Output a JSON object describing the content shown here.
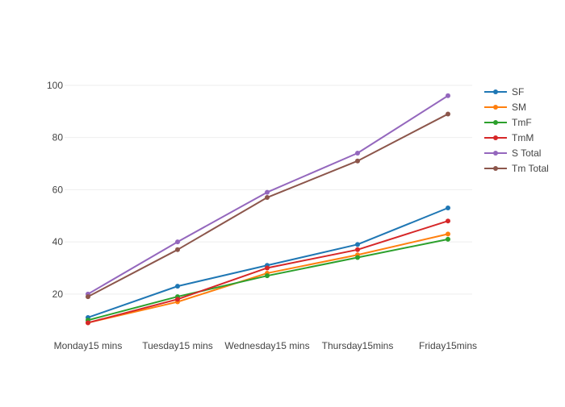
{
  "chart_data": {
    "type": "line",
    "title": "",
    "xlabel": "",
    "ylabel": "",
    "categories": [
      "Monday15 mins",
      "Tuesday15 mins",
      "Wednesday15 mins",
      "Thursday15mins",
      "Friday15mins"
    ],
    "ylim": [
      4.2,
      101.8
    ],
    "yticks": [
      20,
      40,
      60,
      80,
      100
    ],
    "grid": true,
    "legend_position": "right",
    "series": [
      {
        "name": "SF",
        "color": "#1f77b4",
        "values": [
          11,
          23,
          31,
          39,
          53
        ]
      },
      {
        "name": "SM",
        "color": "#ff7f0e",
        "values": [
          9,
          17,
          28,
          35,
          43
        ]
      },
      {
        "name": "TmF",
        "color": "#2ca02c",
        "values": [
          10,
          19,
          27,
          34,
          41
        ]
      },
      {
        "name": "TmM",
        "color": "#d62728",
        "values": [
          9,
          18,
          30,
          37,
          48
        ]
      },
      {
        "name": "S Total",
        "color": "#9467bd",
        "values": [
          20,
          40,
          59,
          74,
          96
        ]
      },
      {
        "name": "Tm Total",
        "color": "#8c564b",
        "values": [
          19,
          37,
          57,
          71,
          89
        ]
      }
    ]
  }
}
